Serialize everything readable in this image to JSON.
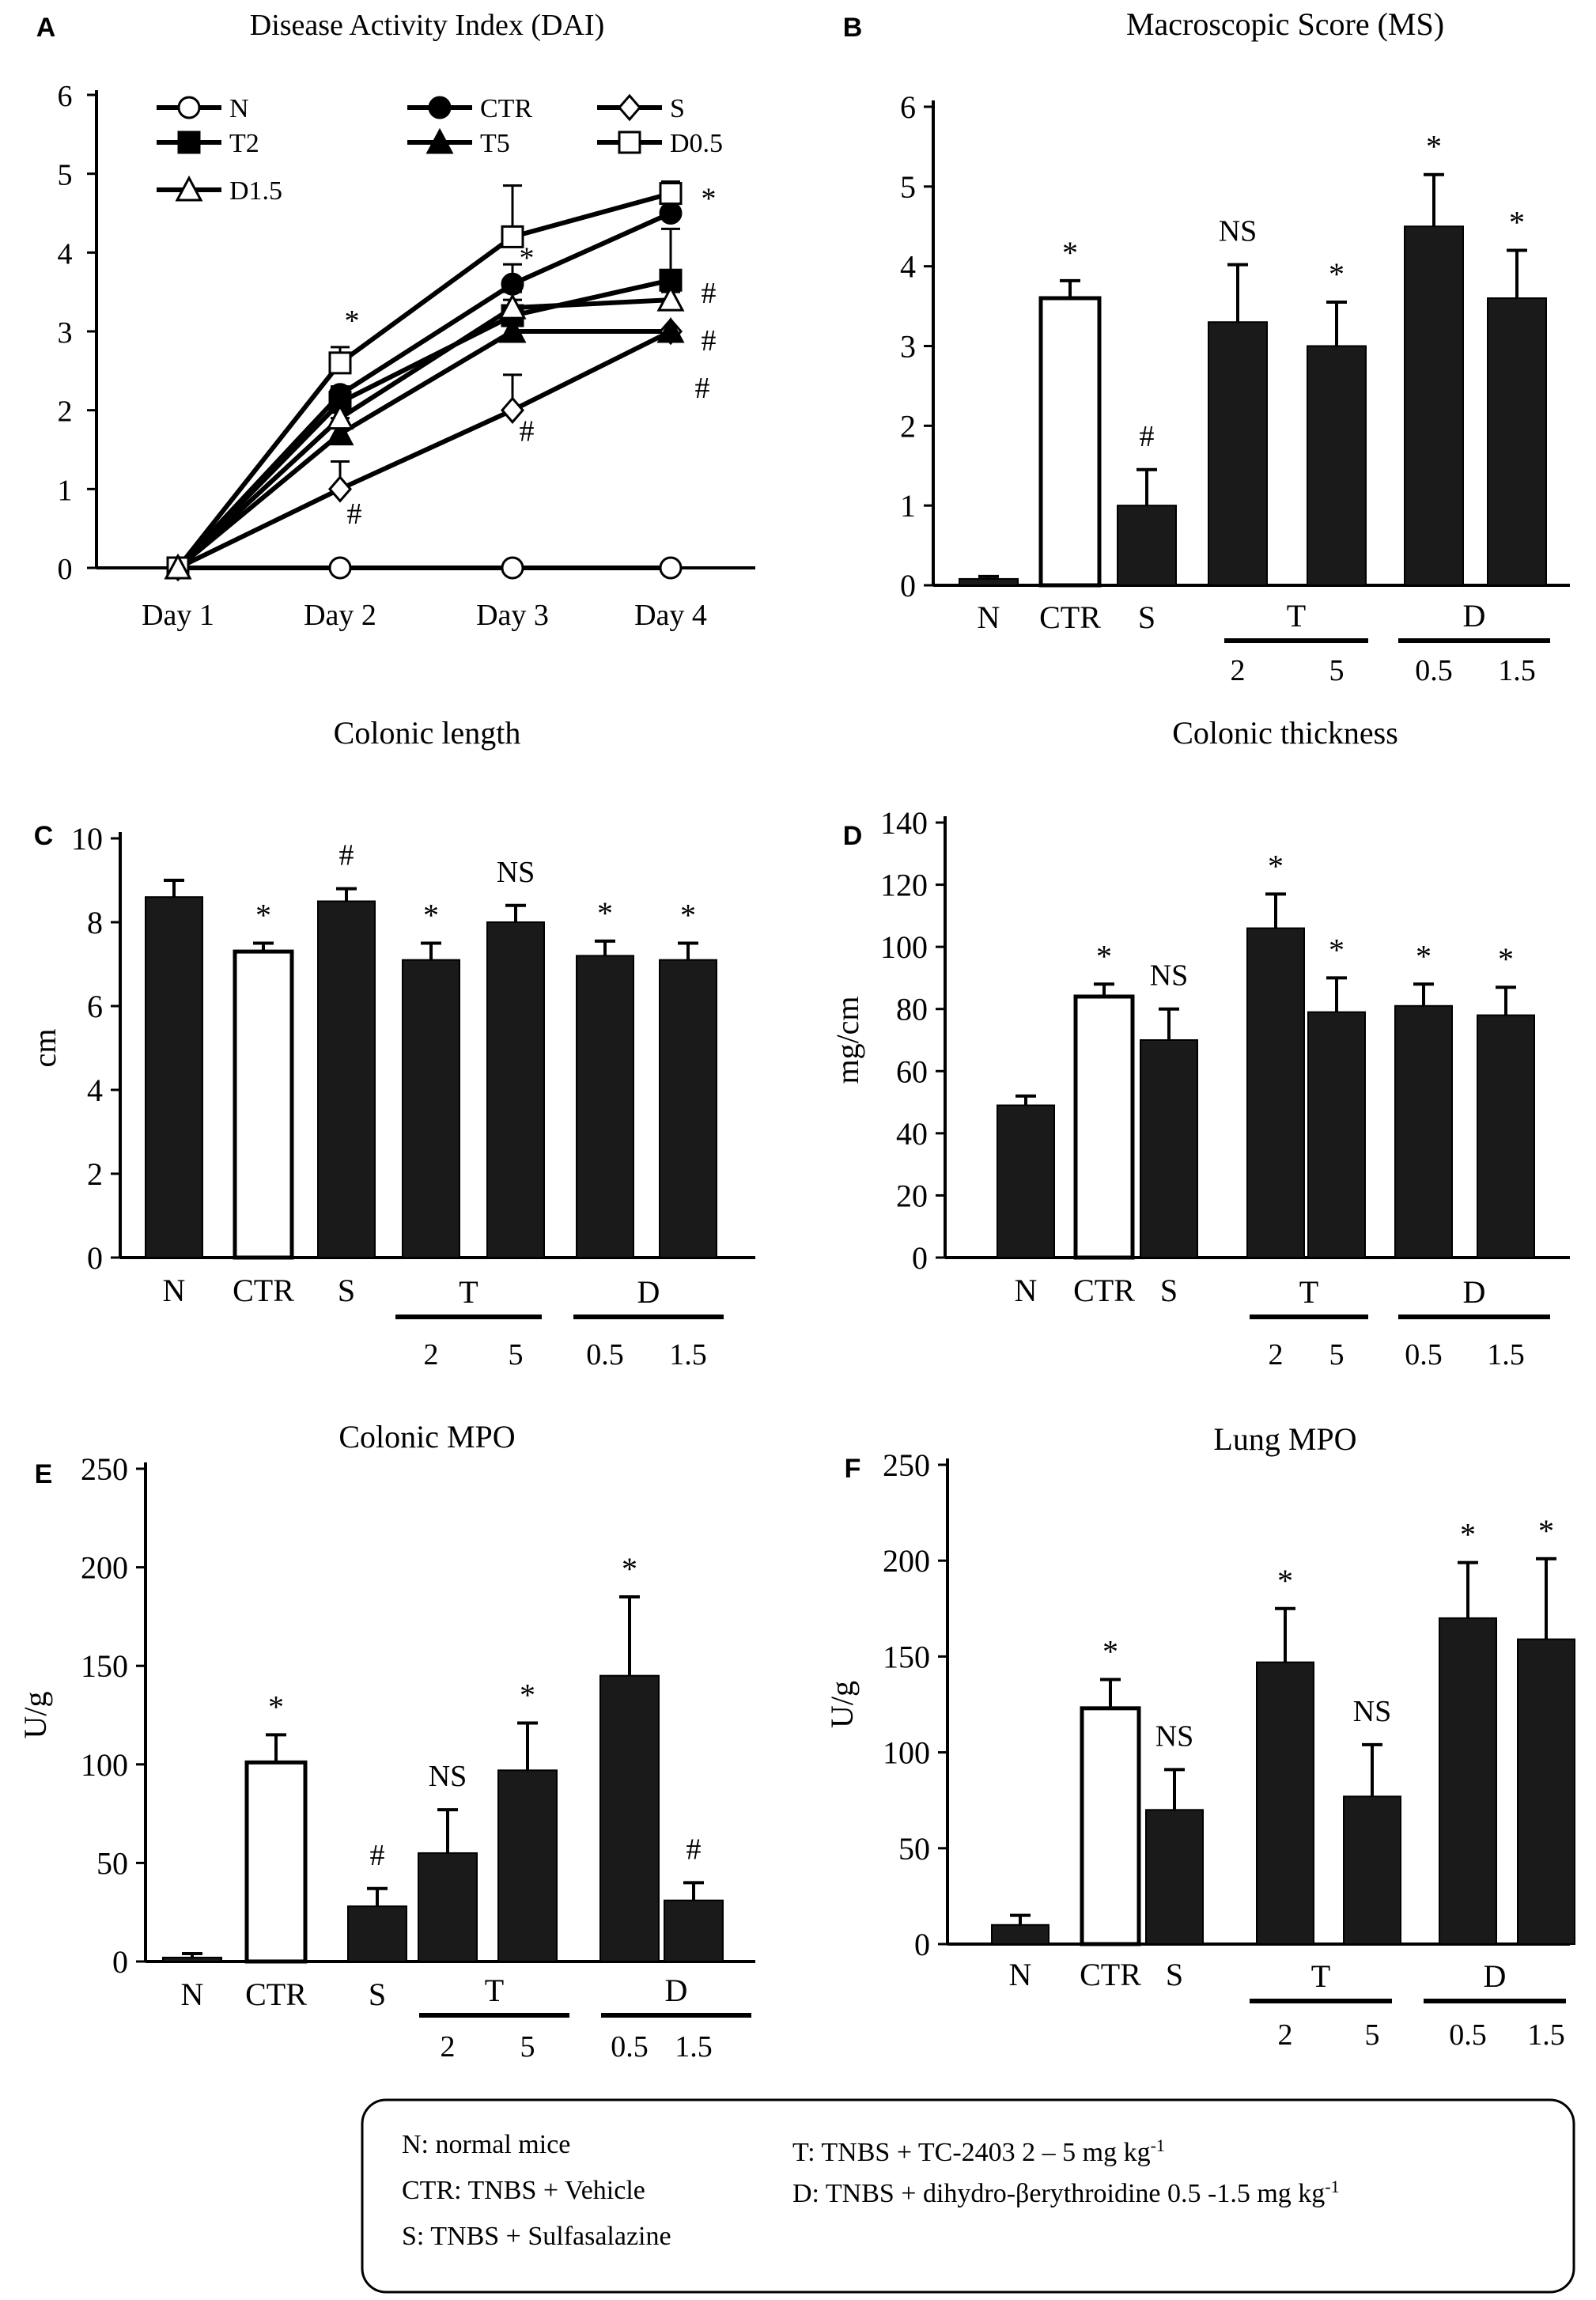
{
  "chart_data": [
    {
      "id": "A",
      "panel_letter": "A",
      "type": "line",
      "title": "Disease Activity Index (DAI)",
      "xlabel": "",
      "ylabel": "",
      "ylim": [
        0,
        6
      ],
      "yticks": [
        0,
        1,
        2,
        3,
        4,
        5,
        6
      ],
      "categories": [
        "Day 1",
        "Day 2",
        "Day 3",
        "Day 4"
      ],
      "series": [
        {
          "name": "N",
          "marker": "circle-open",
          "values": [
            0,
            0,
            0,
            0
          ],
          "errors": [
            0,
            0,
            0,
            0
          ]
        },
        {
          "name": "CTR",
          "marker": "circle-filled",
          "values": [
            0,
            2.2,
            3.6,
            4.5
          ],
          "errors": [
            0,
            0.1,
            0.25,
            0.15
          ]
        },
        {
          "name": "S",
          "marker": "diamond-open",
          "values": [
            0,
            1.0,
            2.0,
            3.0
          ],
          "errors": [
            0,
            0.35,
            0.45,
            0
          ]
        },
        {
          "name": "T2",
          "marker": "square-filled",
          "values": [
            0,
            2.1,
            3.2,
            3.65
          ],
          "errors": [
            0,
            0.2,
            0.2,
            0.65
          ]
        },
        {
          "name": "T5",
          "marker": "triangle-filled",
          "values": [
            0,
            1.7,
            3.0,
            3.0
          ],
          "errors": [
            0,
            0.2,
            0.2,
            0
          ]
        },
        {
          "name": "D0.5",
          "marker": "square-open",
          "values": [
            0,
            2.6,
            4.2,
            4.75
          ],
          "errors": [
            0,
            0.2,
            0.65,
            0.15
          ]
        },
        {
          "name": "D1.5",
          "marker": "triangle-open",
          "values": [
            0,
            1.9,
            3.3,
            3.4
          ],
          "errors": [
            0,
            0.2,
            0.2,
            0.1
          ]
        }
      ],
      "annotations": [
        {
          "text": "*",
          "day": 2,
          "value": 3.15
        },
        {
          "text": "#",
          "day": 2,
          "value": 0.7
        },
        {
          "text": "*",
          "day": 3,
          "value": 3.95
        },
        {
          "text": "#",
          "day": 3,
          "value": 1.75
        },
        {
          "text": "*",
          "day": 4,
          "value": 4.7
        },
        {
          "text": "#",
          "day": 4,
          "value": 3.5
        },
        {
          "text": "#",
          "day": 4,
          "value": 2.9
        },
        {
          "text": "#",
          "day": 4,
          "value": 2.3
        }
      ]
    },
    {
      "id": "B",
      "panel_letter": "B",
      "type": "bar",
      "title": "Macroscopic Score (MS)",
      "ylabel": "",
      "ylim": [
        0,
        6
      ],
      "yticks": [
        0,
        1,
        2,
        3,
        4,
        5,
        6
      ],
      "categories": [
        "N",
        "CTR",
        "S",
        "T2",
        "T5",
        "D0.5",
        "D1.5"
      ],
      "values": [
        0.08,
        3.6,
        1.0,
        3.3,
        3.0,
        4.5,
        3.6
      ],
      "errors": [
        0.03,
        0.22,
        0.45,
        0.72,
        0.55,
        0.65,
        0.6
      ],
      "marks": [
        "",
        "*",
        "#",
        "NS",
        "*",
        "*",
        "*"
      ],
      "tick_labels": [
        "N",
        "CTR",
        "S",
        "",
        "",
        "",
        ""
      ],
      "groups": [
        {
          "label": "T",
          "dose_labels": [
            "2",
            "5"
          ]
        },
        {
          "label": "D",
          "dose_labels": [
            "0.5",
            "1.5"
          ]
        }
      ]
    },
    {
      "id": "C",
      "panel_letter": "C",
      "type": "bar",
      "title": "Colonic length",
      "ylabel": "cm",
      "ylim": [
        0,
        10
      ],
      "yticks": [
        0,
        2,
        4,
        6,
        8,
        10
      ],
      "categories": [
        "N",
        "CTR",
        "S",
        "T2",
        "T5",
        "D0.5",
        "D1.5"
      ],
      "values": [
        8.6,
        7.3,
        8.5,
        7.1,
        8.0,
        7.2,
        7.1
      ],
      "errors": [
        0.4,
        0.2,
        0.3,
        0.4,
        0.4,
        0.35,
        0.4
      ],
      "marks": [
        "",
        "*",
        "#",
        "*",
        "NS",
        "*",
        "*"
      ],
      "tick_labels": [
        "N",
        "CTR",
        "S",
        "",
        "",
        "",
        ""
      ],
      "groups": [
        {
          "label": "T",
          "dose_labels": [
            "2",
            "5"
          ]
        },
        {
          "label": "D",
          "dose_labels": [
            "0.5",
            "1.5"
          ]
        }
      ]
    },
    {
      "id": "D",
      "panel_letter": "D",
      "type": "bar",
      "title": "Colonic thickness",
      "ylabel": "mg/cm",
      "ylim": [
        0,
        140
      ],
      "yticks": [
        0,
        20,
        40,
        60,
        80,
        100,
        120,
        140
      ],
      "categories": [
        "N",
        "CTR",
        "S",
        "T2",
        "T5",
        "D0.5",
        "D1.5"
      ],
      "values": [
        49,
        84,
        70,
        106,
        79,
        81,
        78
      ],
      "errors": [
        3,
        4,
        10,
        11,
        11,
        7,
        9
      ],
      "marks": [
        "",
        "*",
        "NS",
        "*",
        "*",
        "*",
        "*"
      ],
      "tick_labels": [
        "N",
        "CTR",
        "S",
        "",
        "",
        "",
        ""
      ],
      "groups": [
        {
          "label": "T",
          "dose_labels": [
            "2",
            "5"
          ]
        },
        {
          "label": "D",
          "dose_labels": [
            "0.5",
            "1.5"
          ]
        }
      ]
    },
    {
      "id": "E",
      "panel_letter": "E",
      "type": "bar",
      "title": "Colonic MPO",
      "ylabel": "U/g",
      "ylim": [
        0,
        250
      ],
      "yticks": [
        0,
        50,
        100,
        150,
        200,
        250
      ],
      "categories": [
        "N",
        "CTR",
        "S",
        "T2",
        "T5",
        "D0.5",
        "D1.5"
      ],
      "values": [
        2,
        101,
        28,
        55,
        97,
        145,
        31
      ],
      "errors": [
        2,
        14,
        9,
        22,
        24,
        40,
        9
      ],
      "marks": [
        "",
        "*",
        "#",
        "NS",
        "*",
        "*",
        "#"
      ],
      "tick_labels": [
        "N",
        "CTR",
        "S",
        "",
        "",
        "",
        ""
      ],
      "groups": [
        {
          "label": "T",
          "dose_labels": [
            "2",
            "5"
          ]
        },
        {
          "label": "D",
          "dose_labels": [
            "0.5",
            "1.5"
          ]
        }
      ]
    },
    {
      "id": "F",
      "panel_letter": "F",
      "type": "bar",
      "title": "Lung MPO",
      "ylabel": "U/g",
      "ylim": [
        0,
        250
      ],
      "yticks": [
        0,
        50,
        100,
        150,
        200,
        250
      ],
      "categories": [
        "N",
        "CTR",
        "S",
        "T2",
        "T5",
        "D0.5",
        "D1.5"
      ],
      "values": [
        10,
        123,
        70,
        147,
        77,
        170,
        159
      ],
      "errors": [
        5,
        15,
        21,
        28,
        27,
        29,
        42
      ],
      "marks": [
        "",
        "*",
        "NS",
        "*",
        "NS",
        "*",
        "*"
      ],
      "tick_labels": [
        "N",
        "CTR",
        "S",
        "",
        "",
        "",
        ""
      ],
      "groups": [
        {
          "label": "T",
          "dose_labels": [
            "2",
            "5"
          ]
        },
        {
          "label": "D",
          "dose_labels": [
            "0.5",
            "1.5"
          ]
        }
      ]
    }
  ],
  "legend_box": {
    "left": [
      "N: normal mice",
      "CTR: TNBS + Vehicle",
      "S: TNBS + Sulfasalazine"
    ],
    "right": [
      {
        "text": "T: TNBS + TC-2403 2 – 5 mg kg",
        "sup": "-1"
      },
      {
        "text": "D: TNBS + dihydro-βerythroidine 0.5 -1.5 mg kg",
        "sup": "-1"
      }
    ]
  }
}
